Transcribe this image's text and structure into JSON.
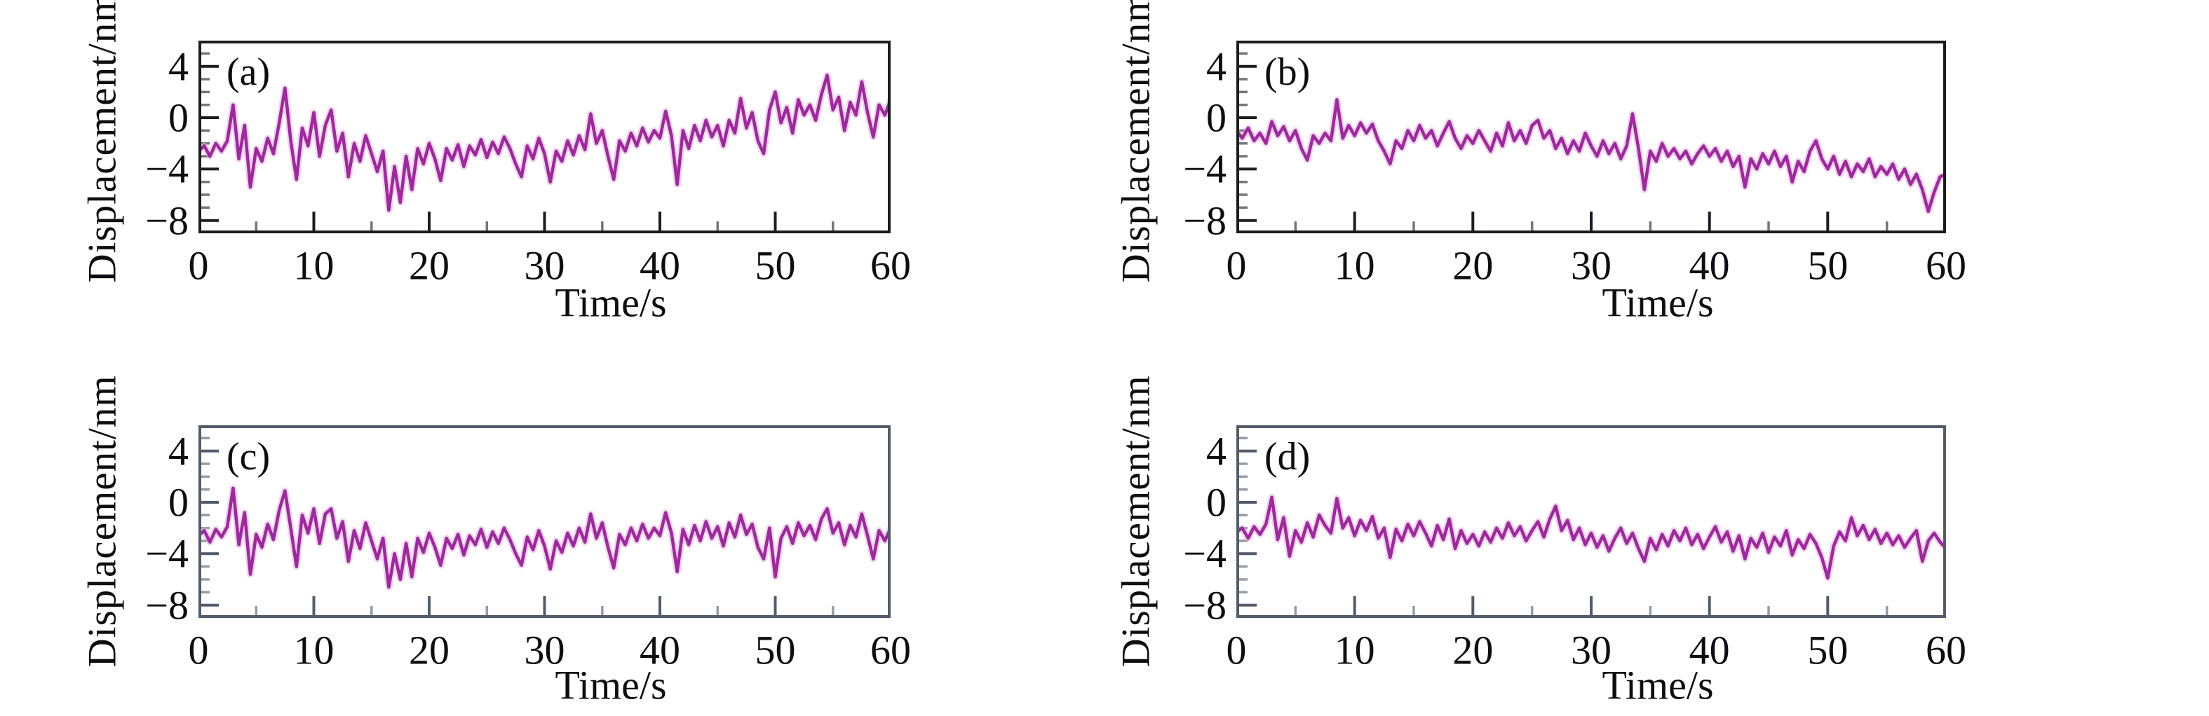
{
  "figure": {
    "background": "#ffffff",
    "title": ""
  },
  "style": {
    "line_color": "#A0289E",
    "line_glow": "#E2A9DF",
    "text_color": "#0e0e12",
    "row1_axis_color": "#1b1b22",
    "row2_axis_color": "#525c6a"
  },
  "panels": [
    {
      "letter": "(a)",
      "axis_color": "#1b1b22"
    },
    {
      "letter": "(b)",
      "axis_color": "#1b1b22"
    },
    {
      "letter": "(c)",
      "axis_color": "#525c6a"
    },
    {
      "letter": "(d)",
      "axis_color": "#525c6a"
    }
  ],
  "chart_data": {
    "type": "line",
    "title": "",
    "x_label": "Time/s",
    "y_label": "Displacement/nm",
    "xlim": [
      0,
      60
    ],
    "ylim": [
      -9,
      6
    ],
    "grid": false,
    "legend": "none",
    "x_start": 0,
    "x_step": 0.5,
    "x_tick_values": [
      0,
      10,
      20,
      30,
      40,
      50,
      60
    ],
    "x_tick_labels": [
      "0",
      "10",
      "20",
      "30",
      "40",
      "50",
      "60"
    ],
    "x_major_tick_marks": [
      10,
      20,
      30,
      40,
      50
    ],
    "x_minor_tick_marks": [
      5,
      15,
      25,
      35,
      45,
      55
    ],
    "y_tick_values": [
      4,
      0,
      -4,
      -8
    ],
    "y_tick_labels": [
      "4",
      "0",
      "−4",
      "−8"
    ],
    "y_major_tick_marks": [
      4,
      0,
      -4,
      -8
    ],
    "y_minor_tick_marks": [
      5,
      3,
      2,
      1,
      -1,
      -2,
      -3,
      -5,
      -6,
      -7
    ],
    "series": [
      {
        "name": "a",
        "values": [
          -2.6,
          -2.2,
          -3.0,
          -2.0,
          -2.6,
          -1.8,
          1.0,
          -3.2,
          -0.6,
          -5.4,
          -2.4,
          -3.4,
          -1.6,
          -2.8,
          -0.4,
          2.3,
          -1.8,
          -4.8,
          -0.8,
          -2.2,
          0.4,
          -3.0,
          -0.6,
          0.6,
          -2.6,
          -1.2,
          -4.6,
          -2.0,
          -3.4,
          -1.4,
          -2.8,
          -4.2,
          -2.6,
          -7.2,
          -3.8,
          -6.6,
          -3.0,
          -5.6,
          -2.4,
          -3.6,
          -2.0,
          -3.2,
          -4.9,
          -2.4,
          -3.3,
          -2.1,
          -3.8,
          -2.2,
          -2.9,
          -1.7,
          -3.1,
          -1.9,
          -2.8,
          -1.5,
          -2.4,
          -3.6,
          -4.6,
          -2.2,
          -3.2,
          -1.6,
          -2.8,
          -5.0,
          -2.6,
          -3.4,
          -1.8,
          -2.9,
          -1.4,
          -2.5,
          0.3,
          -2.0,
          -1.0,
          -3.0,
          -4.8,
          -1.8,
          -2.6,
          -1.2,
          -2.2,
          -0.8,
          -1.9,
          -1.0,
          -1.6,
          0.5,
          -1.4,
          -5.2,
          -1.0,
          -2.4,
          -0.6,
          -1.8,
          -0.2,
          -1.5,
          -0.6,
          -2.2,
          -0.2,
          -1.2,
          1.5,
          -0.8,
          0.4,
          -1.8,
          -2.8,
          0.6,
          2.0,
          -0.4,
          0.8,
          -1.2,
          1.4,
          0.2,
          1.0,
          -0.2,
          1.8,
          3.3,
          0.6,
          1.6,
          -1.0,
          1.2,
          0.2,
          2.8,
          0.4,
          -1.5,
          1.0,
          0.2,
          1.4
        ]
      },
      {
        "name": "b",
        "values": [
          -1.0,
          -1.6,
          -0.8,
          -1.8,
          -1.2,
          -2.0,
          -0.3,
          -1.4,
          -0.7,
          -1.8,
          -1.0,
          -2.4,
          -3.3,
          -1.4,
          -2.0,
          -1.2,
          -1.8,
          1.4,
          -1.6,
          -0.6,
          -1.4,
          -0.4,
          -1.2,
          -0.5,
          -1.8,
          -2.6,
          -3.6,
          -1.8,
          -2.4,
          -1.0,
          -1.8,
          -0.6,
          -1.6,
          -1.0,
          -2.2,
          -1.2,
          -0.3,
          -1.6,
          -2.4,
          -1.4,
          -2.0,
          -1.0,
          -1.8,
          -2.6,
          -1.2,
          -2.2,
          -0.4,
          -1.8,
          -1.0,
          -2.0,
          -0.6,
          -0.2,
          -1.6,
          -1.0,
          -2.4,
          -1.6,
          -2.8,
          -1.8,
          -2.6,
          -1.2,
          -2.2,
          -3.0,
          -1.8,
          -2.8,
          -2.0,
          -3.2,
          -2.2,
          0.3,
          -2.4,
          -5.6,
          -2.6,
          -3.4,
          -2.0,
          -3.0,
          -2.4,
          -3.2,
          -2.6,
          -3.6,
          -2.8,
          -2.2,
          -3.0,
          -2.4,
          -3.4,
          -2.6,
          -3.8,
          -3.0,
          -5.4,
          -3.2,
          -4.0,
          -2.8,
          -3.6,
          -2.6,
          -3.8,
          -3.0,
          -5.0,
          -3.4,
          -4.2,
          -2.6,
          -1.8,
          -3.2,
          -4.0,
          -3.0,
          -4.4,
          -3.4,
          -4.6,
          -3.6,
          -4.2,
          -3.2,
          -4.6,
          -3.8,
          -4.4,
          -3.6,
          -4.8,
          -4.0,
          -5.2,
          -4.4,
          -5.6,
          -7.3,
          -5.8,
          -4.6,
          -4.4
        ]
      },
      {
        "name": "c",
        "values": [
          -2.6,
          -2.2,
          -3.1,
          -2.1,
          -2.7,
          -1.9,
          1.1,
          -3.3,
          -0.8,
          -5.6,
          -2.5,
          -3.5,
          -1.7,
          -2.9,
          -0.6,
          0.9,
          -2.0,
          -5.0,
          -1.0,
          -2.4,
          -0.5,
          -3.2,
          -0.9,
          -0.5,
          -2.8,
          -1.5,
          -4.6,
          -2.2,
          -3.6,
          -1.6,
          -3.0,
          -4.4,
          -2.8,
          -6.6,
          -4.0,
          -6.0,
          -3.2,
          -5.8,
          -2.8,
          -3.9,
          -2.4,
          -3.5,
          -4.9,
          -2.8,
          -3.6,
          -2.5,
          -4.1,
          -2.6,
          -3.3,
          -2.1,
          -3.5,
          -2.3,
          -3.2,
          -2.0,
          -2.9,
          -4.0,
          -4.9,
          -2.7,
          -3.7,
          -2.2,
          -3.4,
          -5.2,
          -3.0,
          -3.9,
          -2.4,
          -3.4,
          -2.0,
          -3.1,
          -0.9,
          -2.8,
          -1.6,
          -3.5,
          -5.1,
          -2.5,
          -3.3,
          -2.0,
          -3.0,
          -1.7,
          -2.8,
          -2.0,
          -2.6,
          -0.8,
          -2.4,
          -5.4,
          -2.1,
          -3.3,
          -1.8,
          -3.0,
          -1.5,
          -2.8,
          -1.9,
          -3.4,
          -1.6,
          -2.7,
          -1.0,
          -2.5,
          -1.7,
          -3.5,
          -4.4,
          -2.0,
          -5.8,
          -2.8,
          -1.9,
          -3.2,
          -1.6,
          -2.6,
          -1.8,
          -2.9,
          -1.3,
          -0.5,
          -2.4,
          -1.6,
          -3.3,
          -1.8,
          -2.7,
          -0.9,
          -2.6,
          -4.4,
          -2.2,
          -3.0,
          -2.0
        ]
      },
      {
        "name": "d",
        "values": [
          -2.3,
          -2.0,
          -2.8,
          -1.9,
          -2.5,
          -1.7,
          0.4,
          -2.9,
          -1.2,
          -4.2,
          -2.2,
          -3.1,
          -1.6,
          -2.7,
          -1.0,
          -1.8,
          -2.4,
          0.3,
          -2.0,
          -1.2,
          -2.6,
          -1.4,
          -2.2,
          -1.1,
          -2.8,
          -2.0,
          -4.3,
          -2.1,
          -3.0,
          -1.7,
          -2.6,
          -1.5,
          -2.4,
          -3.4,
          -1.8,
          -2.9,
          -1.3,
          -3.6,
          -2.2,
          -3.2,
          -2.5,
          -3.4,
          -2.3,
          -3.1,
          -2.0,
          -2.8,
          -1.6,
          -2.6,
          -1.9,
          -3.0,
          -2.2,
          -1.5,
          -2.7,
          -1.3,
          -0.3,
          -2.2,
          -1.4,
          -2.9,
          -2.0,
          -3.3,
          -2.4,
          -3.5,
          -2.6,
          -3.8,
          -2.8,
          -2.0,
          -3.2,
          -2.4,
          -3.6,
          -4.6,
          -2.8,
          -3.7,
          -2.5,
          -3.4,
          -2.2,
          -3.0,
          -2.0,
          -3.3,
          -2.5,
          -3.6,
          -2.7,
          -1.9,
          -3.1,
          -2.3,
          -3.8,
          -2.6,
          -4.4,
          -2.8,
          -3.5,
          -2.4,
          -3.9,
          -2.7,
          -3.4,
          -2.2,
          -4.1,
          -2.9,
          -3.6,
          -2.5,
          -3.2,
          -4.3,
          -5.9,
          -3.4,
          -2.3,
          -3.0,
          -1.2,
          -2.6,
          -1.8,
          -2.9,
          -2.1,
          -3.2,
          -2.4,
          -3.3,
          -2.6,
          -3.5,
          -2.8,
          -2.2,
          -4.6,
          -3.0,
          -2.4,
          -3.1,
          -3.6
        ]
      }
    ]
  }
}
